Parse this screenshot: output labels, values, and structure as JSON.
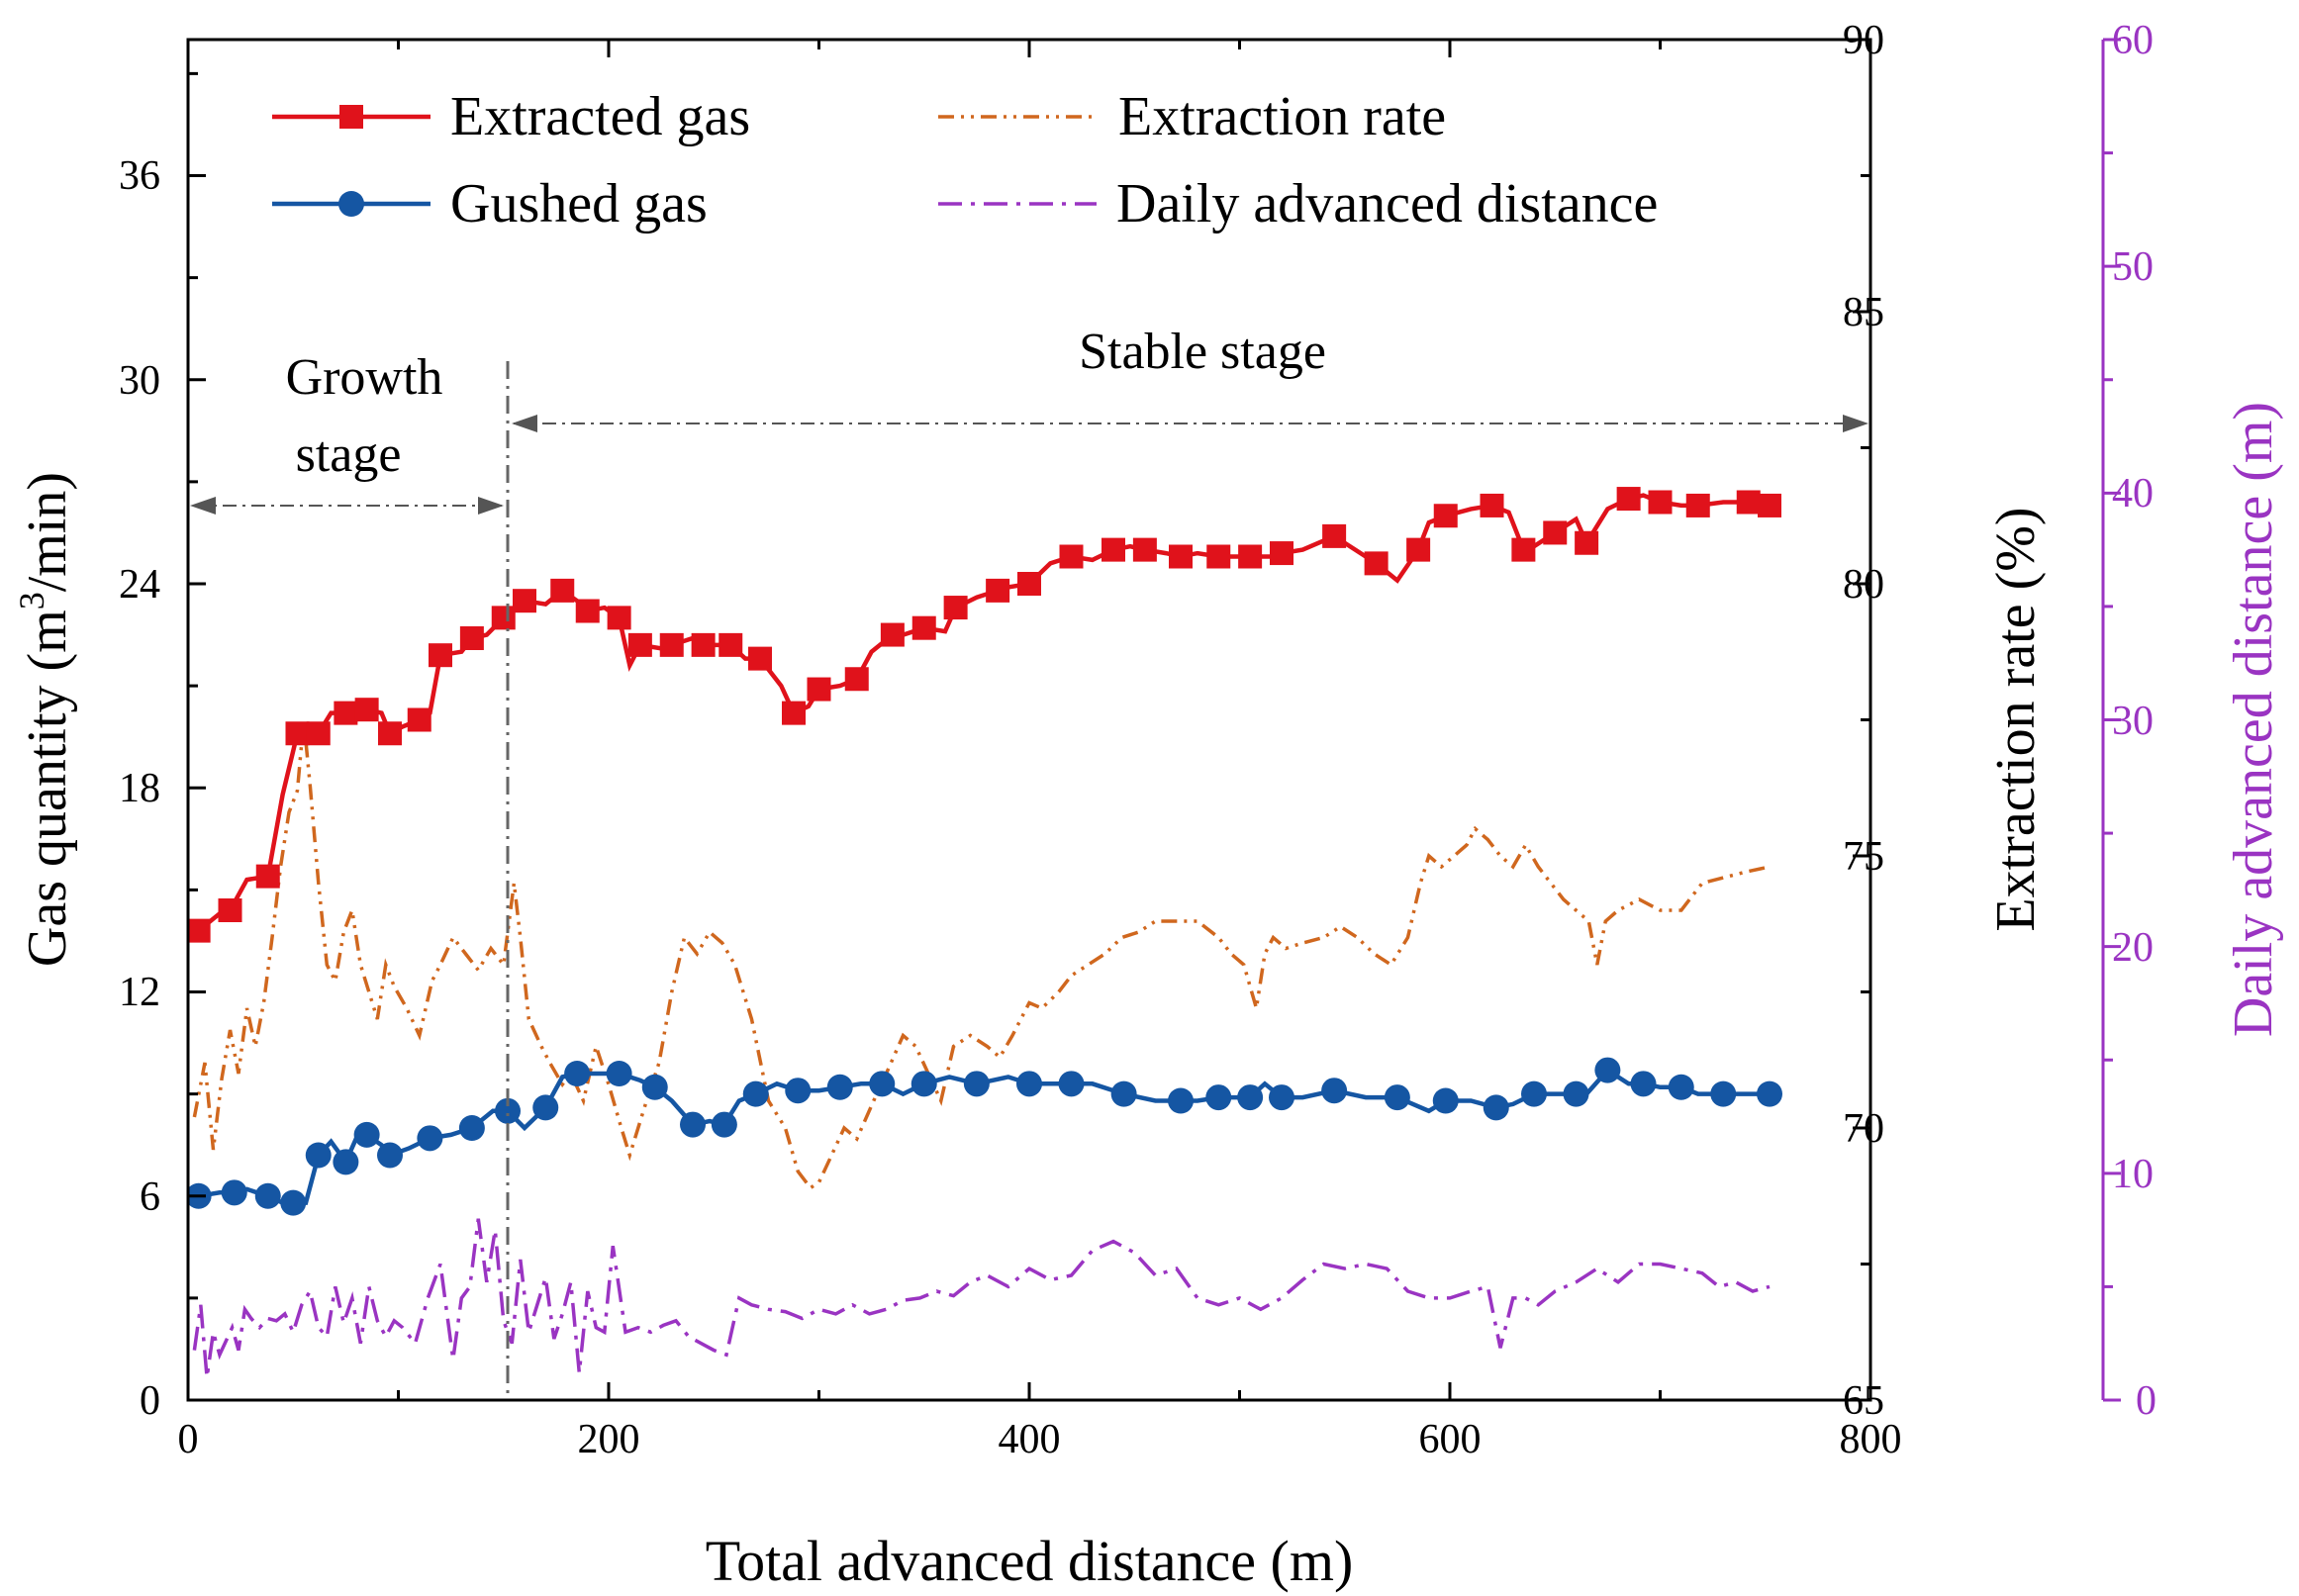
{
  "chart_data": {
    "type": "line",
    "xlabel": "Total advanced distance (m)",
    "ylabel": "Gas quantity (m³/min)",
    "ylabel_parts": {
      "pre": "Gas quantity (m",
      "sup": "3",
      "post": "/min)"
    },
    "y2label": "Extraction rate (%)",
    "y3label": "Daily advanced distance (m)",
    "xlim": [
      0,
      800
    ],
    "ylim": [
      0,
      40
    ],
    "y2lim": [
      65,
      90
    ],
    "y3lim": [
      0,
      60
    ],
    "x_ticks": [
      "0",
      "200",
      "400",
      "600",
      "800"
    ],
    "y_ticks": [
      "0",
      "6",
      "12",
      "18",
      "24",
      "30",
      "36"
    ],
    "y2_ticks": [
      "65",
      "70",
      "75",
      "80",
      "85",
      "90"
    ],
    "y3_ticks": [
      "0",
      "10",
      "20",
      "30",
      "40",
      "50",
      "60"
    ],
    "colors": {
      "extracted": "#e0121b",
      "gushed": "#1556a3",
      "rate": "#d0671e",
      "daily": "#9a34c2",
      "stage_line": "#666666"
    },
    "legend": {
      "extracted": "Extracted gas",
      "rate": "Extraction rate",
      "gushed": "Gushed gas",
      "daily": "Daily advanced distance"
    },
    "annotations": {
      "growth_line1": "Growth",
      "growth_line2": "stage",
      "stable": "Stable stage",
      "boundary_x": 152
    },
    "series": [
      {
        "name": "Extracted gas",
        "axis": "left",
        "x": [
          5,
          15,
          20,
          28,
          38,
          45,
          52,
          56,
          62,
          68,
          75,
          80,
          85,
          92,
          96,
          102,
          110,
          115,
          120,
          130,
          135,
          142,
          150,
          155,
          160,
          170,
          178,
          185,
          190,
          198,
          205,
          210,
          215,
          225,
          230,
          240,
          245,
          250,
          258,
          265,
          272,
          282,
          288,
          295,
          300,
          310,
          318,
          325,
          335,
          340,
          350,
          360,
          365,
          375,
          385,
          390,
          400,
          410,
          420,
          430,
          440,
          448,
          455,
          465,
          472,
          480,
          490,
          495,
          505,
          515,
          520,
          530,
          545,
          555,
          565,
          575,
          585,
          590,
          598,
          610,
          620,
          628,
          635,
          640,
          650,
          660,
          665,
          675,
          685,
          692,
          700,
          710,
          718,
          730,
          742,
          752
        ],
        "values": [
          13.8,
          14.3,
          14.4,
          15.3,
          15.4,
          17.8,
          19.6,
          19.8,
          19.6,
          20.2,
          20.2,
          20.0,
          20.3,
          20.2,
          19.6,
          19.8,
          20.0,
          20.2,
          21.9,
          22.0,
          22.4,
          22.5,
          23.0,
          23.3,
          23.5,
          23.4,
          23.8,
          23.5,
          23.2,
          23.3,
          23.0,
          21.6,
          22.2,
          22.1,
          22.2,
          22.4,
          22.2,
          22.2,
          22.2,
          21.8,
          21.8,
          21.0,
          20.2,
          20.4,
          20.9,
          21.0,
          21.2,
          22.0,
          22.5,
          22.5,
          22.7,
          22.6,
          23.3,
          23.6,
          23.8,
          23.9,
          24.0,
          24.6,
          24.8,
          24.7,
          25.0,
          25.1,
          25.0,
          24.9,
          24.8,
          24.9,
          24.8,
          24.8,
          24.8,
          24.8,
          24.9,
          25.0,
          25.4,
          25.0,
          24.6,
          24.1,
          25.0,
          25.8,
          26.0,
          26.2,
          26.3,
          26.1,
          25.0,
          25.1,
          25.5,
          25.9,
          25.2,
          26.2,
          26.5,
          26.6,
          26.4,
          26.3,
          26.3,
          26.4,
          26.4,
          26.3
        ]
      },
      {
        "name": "Gushed gas",
        "axis": "left",
        "x": [
          5,
          15,
          22,
          28,
          38,
          45,
          50,
          56,
          62,
          68,
          75,
          80,
          85,
          92,
          96,
          105,
          115,
          125,
          135,
          145,
          152,
          160,
          170,
          178,
          185,
          195,
          205,
          215,
          222,
          230,
          240,
          248,
          255,
          262,
          270,
          280,
          290,
          300,
          310,
          320,
          330,
          340,
          350,
          362,
          375,
          390,
          400,
          410,
          420,
          430,
          445,
          460,
          472,
          480,
          490,
          495,
          505,
          512,
          520,
          530,
          545,
          560,
          575,
          590,
          598,
          610,
          622,
          630,
          640,
          650,
          660,
          665,
          675,
          685,
          692,
          700,
          710,
          718,
          730,
          742,
          752
        ],
        "values": [
          6.0,
          6.1,
          6.1,
          6.2,
          6.0,
          5.8,
          5.8,
          5.8,
          7.2,
          7.6,
          7.0,
          7.7,
          7.8,
          7.5,
          7.2,
          7.4,
          7.7,
          7.8,
          8.0,
          8.5,
          8.5,
          8.0,
          8.6,
          9.5,
          9.6,
          9.6,
          9.6,
          9.4,
          9.2,
          8.8,
          8.1,
          8.2,
          8.1,
          8.8,
          9.0,
          9.3,
          9.1,
          9.1,
          9.2,
          9.3,
          9.3,
          9.0,
          9.3,
          9.5,
          9.3,
          9.5,
          9.3,
          9.3,
          9.3,
          9.3,
          9.0,
          8.8,
          8.8,
          8.8,
          8.9,
          8.9,
          8.9,
          9.3,
          8.9,
          8.9,
          9.1,
          8.9,
          8.9,
          8.5,
          8.8,
          8.8,
          8.6,
          8.7,
          9.0,
          9.0,
          9.0,
          9.0,
          9.7,
          9.3,
          9.3,
          9.2,
          9.2,
          9.0,
          9.0,
          9.0,
          9.0
        ]
      },
      {
        "name": "Extraction rate",
        "axis": "right",
        "x": [
          3,
          8,
          12,
          16,
          20,
          24,
          28,
          32,
          36,
          40,
          44,
          48,
          52,
          55,
          58,
          62,
          66,
          70,
          74,
          78,
          82,
          86,
          90,
          94,
          98,
          104,
          110,
          116,
          120,
          126,
          132,
          138,
          144,
          150,
          155,
          158,
          162,
          168,
          172,
          178,
          182,
          188,
          194,
          200,
          206,
          210,
          218,
          224,
          230,
          236,
          242,
          248,
          254,
          260,
          268,
          276,
          284,
          290,
          296,
          300,
          306,
          312,
          318,
          326,
          332,
          340,
          346,
          352,
          358,
          364,
          372,
          380,
          386,
          392,
          400,
          406,
          414,
          420,
          428,
          436,
          444,
          452,
          460,
          470,
          480,
          490,
          496,
          502,
          508,
          512,
          516,
          522,
          530,
          540,
          548,
          556,
          564,
          572,
          580,
          586,
          590,
          596,
          602,
          608,
          612,
          618,
          624,
          630,
          636,
          642,
          648,
          654,
          660,
          666,
          670,
          674,
          680,
          690,
          700,
          710,
          720,
          730,
          740,
          752
        ],
        "values": [
          70.2,
          71.2,
          69.6,
          70.9,
          71.8,
          71.0,
          72.2,
          71.5,
          72.3,
          73.5,
          74.8,
          75.8,
          76.2,
          77.5,
          76.3,
          74.5,
          73.0,
          72.7,
          73.6,
          74.0,
          73.0,
          72.5,
          72.0,
          73.0,
          72.6,
          72.2,
          71.7,
          72.7,
          73.0,
          73.5,
          73.2,
          72.9,
          73.3,
          73.0,
          74.5,
          73.5,
          72.0,
          71.5,
          71.2,
          70.8,
          71.0,
          70.5,
          71.5,
          70.8,
          70.0,
          69.5,
          70.5,
          71.2,
          72.5,
          73.5,
          73.2,
          73.6,
          73.4,
          73.0,
          72.0,
          70.5,
          70.0,
          69.2,
          68.9,
          69.0,
          69.5,
          70.0,
          69.8,
          70.5,
          71.0,
          71.7,
          71.5,
          71.0,
          70.5,
          71.5,
          71.7,
          71.5,
          71.3,
          71.7,
          72.3,
          72.2,
          72.5,
          72.8,
          73.0,
          73.2,
          73.5,
          73.6,
          73.8,
          73.8,
          73.8,
          73.5,
          73.2,
          73.0,
          72.2,
          73.2,
          73.5,
          73.3,
          73.4,
          73.5,
          73.7,
          73.5,
          73.2,
          73.0,
          73.5,
          74.5,
          75.0,
          74.8,
          75.0,
          75.2,
          75.5,
          75.3,
          75.0,
          74.8,
          75.2,
          74.8,
          74.5,
          74.2,
          74.0,
          73.8,
          73.0,
          73.8,
          74.0,
          74.2,
          74.0,
          74.0,
          74.5,
          74.6,
          74.7,
          74.8
        ]
      },
      {
        "name": "Daily advanced distance",
        "axis": "right3",
        "x": [
          3,
          6,
          9,
          12,
          15,
          18,
          21,
          24,
          27,
          30,
          34,
          38,
          42,
          46,
          50,
          54,
          58,
          62,
          66,
          70,
          74,
          78,
          82,
          86,
          90,
          94,
          98,
          102,
          108,
          114,
          120,
          126,
          130,
          134,
          138,
          142,
          146,
          150,
          154,
          158,
          162,
          166,
          170,
          174,
          178,
          182,
          186,
          190,
          194,
          198,
          202,
          208,
          214,
          220,
          226,
          232,
          238,
          244,
          250,
          256,
          262,
          268,
          276,
          284,
          292,
          300,
          308,
          316,
          324,
          332,
          340,
          348,
          356,
          364,
          372,
          380,
          390,
          400,
          410,
          420,
          430,
          440,
          450,
          460,
          470,
          480,
          490,
          500,
          510,
          520,
          530,
          540,
          550,
          560,
          570,
          580,
          590,
          600,
          610,
          618,
          624,
          630,
          636,
          642,
          650,
          660,
          670,
          680,
          690,
          700,
          710,
          720,
          728,
          736,
          744,
          752
        ],
        "values": [
          2.2,
          4.2,
          1.0,
          3.0,
          2.0,
          2.6,
          3.2,
          2.2,
          4.0,
          3.6,
          3.2,
          3.6,
          3.5,
          3.8,
          3.0,
          4.2,
          4.8,
          3.2,
          2.8,
          5.0,
          3.4,
          4.5,
          2.5,
          5.0,
          3.5,
          2.8,
          3.5,
          3.2,
          2.5,
          4.5,
          6.0,
          1.8,
          4.5,
          5.0,
          8.0,
          5.2,
          7.5,
          3.5,
          2.5,
          6.2,
          3.0,
          4.2,
          5.4,
          2.7,
          3.8,
          5.2,
          1.2,
          4.8,
          3.2,
          3.0,
          6.8,
          3.0,
          3.2,
          3.0,
          3.3,
          3.5,
          2.8,
          2.5,
          2.2,
          2.0,
          4.5,
          4.2,
          4.0,
          3.9,
          3.6,
          4.0,
          3.8,
          4.2,
          3.8,
          4.0,
          4.4,
          4.5,
          4.8,
          4.6,
          5.2,
          5.5,
          5.0,
          5.8,
          5.3,
          5.5,
          6.6,
          7.0,
          6.5,
          5.5,
          5.8,
          4.5,
          4.2,
          4.5,
          4.0,
          4.5,
          5.3,
          6.0,
          5.8,
          6.0,
          5.8,
          4.8,
          4.5,
          4.5,
          4.8,
          5.0,
          2.3,
          4.5,
          4.5,
          4.2,
          4.8,
          5.2,
          5.8,
          5.2,
          6.0,
          6.0,
          5.8,
          5.6,
          5.0,
          5.2,
          4.8,
          5.0
        ]
      }
    ]
  }
}
